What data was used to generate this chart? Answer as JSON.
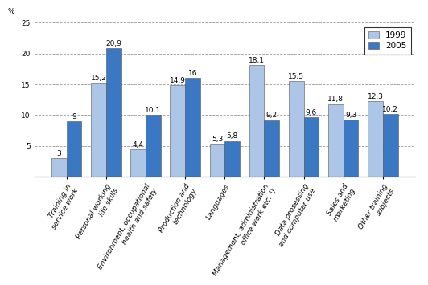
{
  "categories": [
    "Training in\nservice work",
    "Personal working\nlife skills",
    "Environment, occupational\nhealth and safety",
    "Production and\ntechnology",
    "Languages",
    "Management, administration\noffice work etc. ¹)",
    "Data prosessing\nand computer use",
    "Sales and\nmarketing",
    "Other training\nsubjects"
  ],
  "values_1999": [
    3.0,
    15.2,
    4.4,
    14.9,
    5.3,
    18.1,
    15.5,
    11.8,
    12.3
  ],
  "values_2005": [
    9.0,
    20.9,
    10.1,
    16.0,
    5.8,
    9.2,
    9.6,
    9.3,
    10.2
  ],
  "labels_1999": [
    "3",
    "15,2",
    "4,4",
    "14,9",
    "5,3",
    "18,1",
    "15,5",
    "11,8",
    "12,3"
  ],
  "labels_2005": [
    "9",
    "20,9",
    "10,1",
    "16",
    "5,8",
    "9,2",
    "9,6",
    "9,3",
    "10,2"
  ],
  "color_1999": "#adc6e8",
  "color_2005": "#3b78c4",
  "ylabel": "%",
  "ylim": [
    0,
    25
  ],
  "yticks": [
    0,
    5,
    10,
    15,
    20,
    25
  ],
  "legend_labels": [
    "1999",
    "2005"
  ],
  "bar_width": 0.38,
  "label_fontsize": 6.5,
  "tick_fontsize": 6.5,
  "legend_fontsize": 7.5
}
